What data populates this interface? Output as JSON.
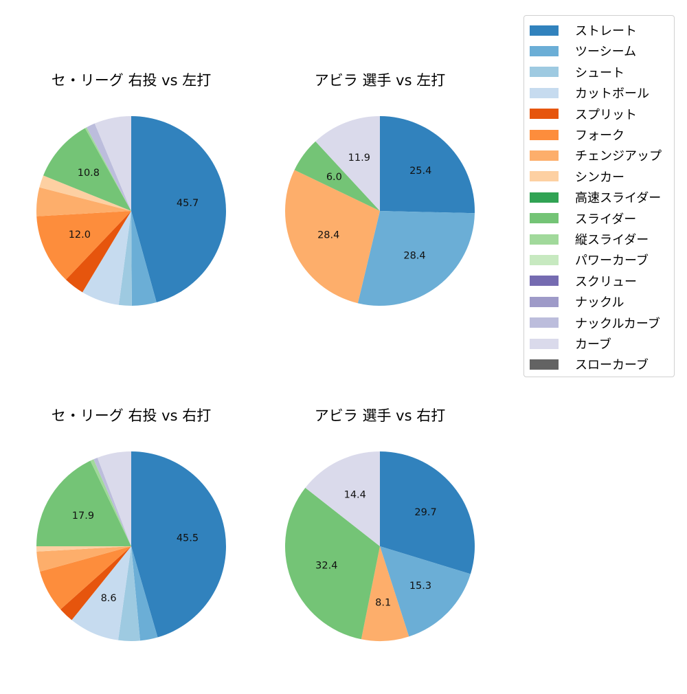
{
  "legend": {
    "items": [
      {
        "label": "ストレート",
        "color": "#3182bd"
      },
      {
        "label": "ツーシーム",
        "color": "#6baed6"
      },
      {
        "label": "シュート",
        "color": "#9ecae1"
      },
      {
        "label": "カットボール",
        "color": "#c6dbef"
      },
      {
        "label": "スプリット",
        "color": "#e6550d"
      },
      {
        "label": "フォーク",
        "color": "#fd8d3c"
      },
      {
        "label": "チェンジアップ",
        "color": "#fdae6b"
      },
      {
        "label": "シンカー",
        "color": "#fdd0a2"
      },
      {
        "label": "高速スライダー",
        "color": "#31a354"
      },
      {
        "label": "スライダー",
        "color": "#74c476"
      },
      {
        "label": "縦スライダー",
        "color": "#a1d99b"
      },
      {
        "label": "パワーカーブ",
        "color": "#c7e9c0"
      },
      {
        "label": "スクリュー",
        "color": "#756bb1"
      },
      {
        "label": "ナックル",
        "color": "#9e9ac8"
      },
      {
        "label": "ナックルカーブ",
        "color": "#bcbddc"
      },
      {
        "label": "カーブ",
        "color": "#dadaeb"
      },
      {
        "label": "スローカーブ",
        "color": "#636363"
      }
    ]
  },
  "panels": [
    {
      "title": "セ・リーグ 右投 vs 左打"
    },
    {
      "title": "アビラ 選手 vs 左打"
    },
    {
      "title": "セ・リーグ 右投 vs 右打"
    },
    {
      "title": "アビラ 選手 vs 右打"
    }
  ],
  "chart_data": [
    {
      "type": "pie",
      "title": "セ・リーグ 右投 vs 左打",
      "start_angle": 90,
      "direction": "clockwise",
      "label_threshold": 10,
      "categories": [
        "ストレート",
        "ツーシーム",
        "シュート",
        "カットボール",
        "スプリット",
        "フォーク",
        "チェンジアップ",
        "シンカー",
        "スライダー",
        "縦スライダー",
        "ナックルカーブ",
        "カーブ"
      ],
      "values": [
        45.7,
        4.2,
        2.2,
        6.5,
        3.5,
        12.0,
        4.9,
        2.1,
        10.8,
        0.3,
        1.5,
        6.3
      ],
      "colors": [
        "#3182bd",
        "#6baed6",
        "#9ecae1",
        "#c6dbef",
        "#e6550d",
        "#fd8d3c",
        "#fdae6b",
        "#fdd0a2",
        "#74c476",
        "#a1d99b",
        "#bcbddc",
        "#dadaeb"
      ],
      "labels_shown": [
        "45.7",
        "",
        "",
        "",
        "",
        "12.0",
        "",
        "",
        "10.8",
        "",
        "",
        ""
      ]
    },
    {
      "type": "pie",
      "title": "アビラ 選手 vs 左打",
      "start_angle": 90,
      "direction": "clockwise",
      "label_threshold": 5,
      "categories": [
        "ストレート",
        "ツーシーム",
        "チェンジアップ",
        "スライダー",
        "カーブ"
      ],
      "values": [
        25.4,
        28.4,
        28.4,
        6.0,
        11.9
      ],
      "colors": [
        "#3182bd",
        "#6baed6",
        "#fdae6b",
        "#74c476",
        "#dadaeb"
      ],
      "labels_shown": [
        "25.4",
        "28.4",
        "28.4",
        "6.0",
        "11.9"
      ]
    },
    {
      "type": "pie",
      "title": "セ・リーグ 右投 vs 右打",
      "start_angle": 90,
      "direction": "clockwise",
      "label_threshold": 8,
      "categories": [
        "ストレート",
        "ツーシーム",
        "シュート",
        "カットボール",
        "スプリット",
        "フォーク",
        "チェンジアップ",
        "シンカー",
        "スライダー",
        "縦スライダー",
        "ナックルカーブ",
        "カーブ"
      ],
      "values": [
        45.5,
        3.0,
        3.7,
        8.6,
        2.6,
        7.3,
        3.4,
        0.9,
        17.9,
        0.6,
        0.7,
        5.8
      ],
      "colors": [
        "#3182bd",
        "#6baed6",
        "#9ecae1",
        "#c6dbef",
        "#e6550d",
        "#fd8d3c",
        "#fdae6b",
        "#fdd0a2",
        "#74c476",
        "#a1d99b",
        "#bcbddc",
        "#dadaeb"
      ],
      "labels_shown": [
        "45.5",
        "",
        "",
        "8.6",
        "",
        "",
        "",
        "",
        "17.9",
        "",
        "",
        ""
      ]
    },
    {
      "type": "pie",
      "title": "アビラ 選手 vs 右打",
      "start_angle": 90,
      "direction": "clockwise",
      "label_threshold": 5,
      "categories": [
        "ストレート",
        "ツーシーム",
        "チェンジアップ",
        "スライダー",
        "カーブ"
      ],
      "values": [
        29.7,
        15.3,
        8.1,
        32.4,
        14.4
      ],
      "colors": [
        "#3182bd",
        "#6baed6",
        "#fdae6b",
        "#74c476",
        "#dadaeb"
      ],
      "labels_shown": [
        "29.7",
        "15.3",
        "8.1",
        "32.4",
        "14.4"
      ]
    }
  ]
}
